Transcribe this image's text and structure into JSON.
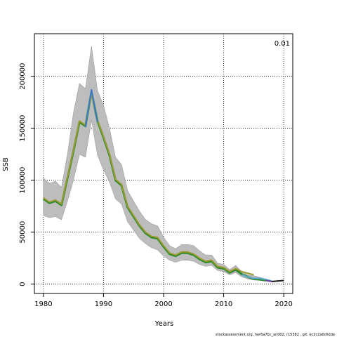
{
  "chart_data": {
    "type": "line",
    "xlabel": "Years",
    "ylabel": "SSB",
    "corner_label": "0.01",
    "footer": "stockassessment.org, her6a7bc_an002, r15382 , git: ec2c2a0c6dde",
    "xlim": [
      1978.5,
      2021.5
    ],
    "ylim": [
      -9000,
      241000
    ],
    "x_ticks": [
      1980,
      1990,
      2000,
      2010,
      2020
    ],
    "y_ticks": [
      0,
      50000,
      100000,
      150000,
      200000
    ],
    "grid": "dotted",
    "ci_band": {
      "x": [
        1980,
        1981,
        1982,
        1983,
        1984,
        1985,
        1986,
        1987,
        1988,
        1989,
        1990,
        1991,
        1992,
        1993,
        1994,
        1995,
        1996,
        1997,
        1998,
        1999,
        2000,
        2001,
        2002,
        2003,
        2004,
        2005,
        2006,
        2007,
        2008,
        2009,
        2010,
        2011,
        2012,
        2013,
        2014,
        2015,
        2016,
        2017
      ],
      "lower": [
        66000,
        64000,
        65000,
        62000,
        80000,
        100000,
        125000,
        122000,
        158000,
        124000,
        110000,
        98000,
        82000,
        77000,
        60000,
        52000,
        44000,
        39000,
        35000,
        33000,
        27000,
        23000,
        21000,
        23000,
        23000,
        22000,
        19000,
        17000,
        18000,
        13000,
        12000,
        9000,
        11000,
        7000,
        5000,
        4000,
        3500,
        3000
      ],
      "upper": [
        102000,
        97000,
        99000,
        93000,
        125000,
        165000,
        193000,
        188000,
        229000,
        186000,
        172000,
        150000,
        122000,
        115000,
        90000,
        80000,
        70000,
        62000,
        58000,
        56000,
        45000,
        37000,
        34000,
        38000,
        38000,
        37000,
        32000,
        28000,
        28000,
        20000,
        19000,
        14000,
        18000,
        12000,
        9000,
        8000,
        6500,
        5000
      ]
    },
    "series": [
      {
        "color": "#2e8b2e",
        "x": [
          1980,
          1981,
          1982,
          1983,
          1984,
          1985,
          1986,
          1987,
          1988,
          1989,
          1990,
          1991,
          1992,
          1993,
          1994,
          1995,
          1996,
          1997,
          1998,
          1999,
          2000,
          2001,
          2002,
          2003,
          2004,
          2005,
          2006,
          2007,
          2008,
          2009,
          2010,
          2011,
          2012,
          2013,
          2014,
          2015,
          2016,
          2017
        ],
        "y": [
          82000,
          78000,
          80000,
          76000,
          102000,
          128000,
          156000,
          152000,
          185000,
          157000,
          141000,
          124000,
          100000,
          95000,
          74000,
          65000,
          56000,
          49000,
          45000,
          44000,
          36000,
          29000,
          27000,
          30000,
          30000,
          28000,
          24000,
          21000,
          22000,
          16000,
          15000,
          11000,
          14000,
          9500,
          7000,
          5000,
          4500,
          3500
        ]
      },
      {
        "color": "#9a9a30",
        "x": [
          1980,
          1981,
          1982,
          1983,
          1984,
          1985,
          1986,
          1987,
          1988,
          1989,
          1990,
          1991,
          1992,
          1993,
          1994,
          1995,
          1996,
          1997,
          1998,
          1999,
          2000,
          2001,
          2002,
          2003,
          2004,
          2005,
          2006,
          2007,
          2008,
          2009,
          2010,
          2011,
          2012,
          2013,
          2014,
          2015
        ],
        "y": [
          83000,
          79000,
          81000,
          77000,
          103000,
          129000,
          157000,
          153000,
          183000,
          158000,
          142000,
          125000,
          101000,
          96000,
          75000,
          66000,
          57000,
          50000,
          46000,
          45000,
          37000,
          30000,
          28000,
          31000,
          31000,
          29000,
          25000,
          22000,
          23000,
          17000,
          16000,
          12000,
          15000,
          12000,
          10500,
          9000
        ]
      },
      {
        "color": "#3a7acc",
        "x": [
          1987,
          1988,
          1989
        ],
        "y": [
          151000,
          187000,
          156000
        ]
      },
      {
        "color": "#5aaad0",
        "x": [
          2013,
          2014,
          2015,
          2016,
          2017,
          2018
        ],
        "y": [
          9000,
          7000,
          5500,
          5500,
          4500,
          3000
        ]
      },
      {
        "color": "#6a3d9a",
        "x": [
          2017,
          2018,
          2019,
          2020
        ],
        "y": [
          3500,
          2500,
          3000,
          3500
        ]
      },
      {
        "color": "#222222",
        "x": [
          2018,
          2019,
          2020
        ],
        "y": [
          2500,
          3000,
          3500
        ]
      }
    ]
  }
}
